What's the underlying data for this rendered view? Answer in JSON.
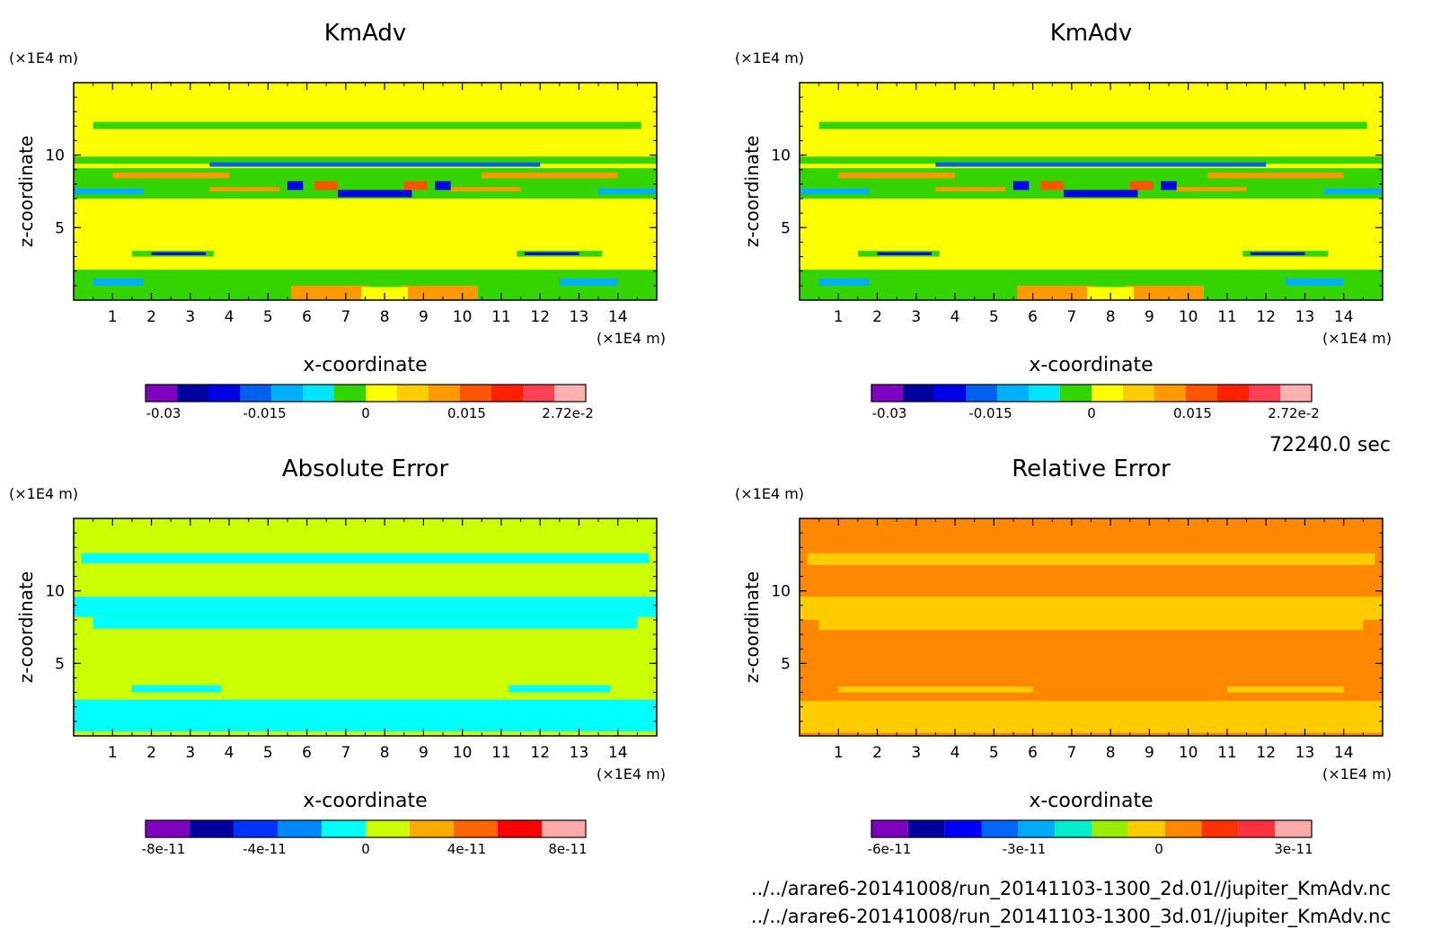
{
  "time_label": "72240.0 sec",
  "files": [
    "../../arare6-20141008/run_20141103-1300_2d.01//jupiter_KmAdv.nc",
    "../../arare6-20141008/run_20141103-1300_3d.01//jupiter_KmAdv.nc"
  ],
  "chart_data": [
    {
      "type": "heatmap",
      "title": "KmAdv",
      "xlabel": "x-coordinate",
      "ylabel": "z-coordinate",
      "x_unit": "(×1E4 m)",
      "y_unit": "(×1E4 m)",
      "xlim": [
        0,
        15
      ],
      "ylim": [
        0,
        15
      ],
      "x_ticks": [
        "1",
        "2",
        "3",
        "4",
        "5",
        "6",
        "7",
        "8",
        "9",
        "10",
        "11",
        "12",
        "13",
        "14"
      ],
      "y_ticks": [
        "5",
        "10"
      ],
      "background": "#ffff00",
      "colorbar": {
        "colors": [
          "#7f00bf",
          "#00009f",
          "#0000e6",
          "#0060f0",
          "#00b0ff",
          "#00e5ff",
          "#33d400",
          "#ffff00",
          "#ffcc00",
          "#ff9900",
          "#ff5500",
          "#ff2000",
          "#ff4055",
          "#ffb0b0"
        ],
        "labels": [
          "-0.03",
          "-0.015",
          "0",
          "0.015",
          "2.72e-2"
        ]
      },
      "regions": [
        {
          "color": "#33d400",
          "x": [
            0.5,
            14.6
          ],
          "z": [
            11.8,
            12.3
          ]
        },
        {
          "color": "#33d400",
          "x": [
            0,
            15
          ],
          "z": [
            9.4,
            9.9
          ]
        },
        {
          "color": "#33d400",
          "x": [
            0,
            15
          ],
          "z": [
            7.0,
            9.1
          ]
        },
        {
          "color": "#00b0ff",
          "x": [
            0,
            1.8
          ],
          "z": [
            7.3,
            7.7
          ]
        },
        {
          "color": "#00b0ff",
          "x": [
            13.5,
            15
          ],
          "z": [
            7.3,
            7.7
          ]
        },
        {
          "color": "#0060f0",
          "x": [
            3.5,
            12
          ],
          "z": [
            9.2,
            9.5
          ]
        },
        {
          "color": "#ff9900",
          "x": [
            1,
            4
          ],
          "z": [
            8.4,
            8.8
          ]
        },
        {
          "color": "#ff9900",
          "x": [
            10.5,
            14
          ],
          "z": [
            8.4,
            8.8
          ]
        },
        {
          "color": "#ff9900",
          "x": [
            3.5,
            5.3
          ],
          "z": [
            7.5,
            7.8
          ]
        },
        {
          "color": "#ff9900",
          "x": [
            9.7,
            11.5
          ],
          "z": [
            7.5,
            7.8
          ]
        },
        {
          "color": "#0000e6",
          "x": [
            5.5,
            5.9
          ],
          "z": [
            7.6,
            8.2
          ]
        },
        {
          "color": "#ff5500",
          "x": [
            6.2,
            6.8
          ],
          "z": [
            7.6,
            8.2
          ]
        },
        {
          "color": "#0000e6",
          "x": [
            6.8,
            8.7
          ],
          "z": [
            7.1,
            7.6
          ]
        },
        {
          "color": "#ff5500",
          "x": [
            8.5,
            9.1
          ],
          "z": [
            7.6,
            8.2
          ]
        },
        {
          "color": "#0000e6",
          "x": [
            9.3,
            9.7
          ],
          "z": [
            7.6,
            8.2
          ]
        },
        {
          "color": "#33d400",
          "x": [
            1.5,
            3.6
          ],
          "z": [
            3.0,
            3.4
          ]
        },
        {
          "color": "#0000e6",
          "x": [
            2.0,
            3.4
          ],
          "z": [
            3.1,
            3.3
          ]
        },
        {
          "color": "#33d400",
          "x": [
            11.4,
            13.6
          ],
          "z": [
            3.0,
            3.4
          ]
        },
        {
          "color": "#0000e6",
          "x": [
            11.6,
            13.0
          ],
          "z": [
            3.1,
            3.3
          ]
        },
        {
          "color": "#33d400",
          "x": [
            0,
            15
          ],
          "z": [
            0,
            2.1
          ]
        },
        {
          "color": "#00b0ff",
          "x": [
            0.5,
            1.8
          ],
          "z": [
            1.0,
            1.5
          ]
        },
        {
          "color": "#00b0ff",
          "x": [
            12.5,
            14
          ],
          "z": [
            1.0,
            1.5
          ]
        },
        {
          "color": "#ff9900",
          "x": [
            5.6,
            7.6
          ],
          "z": [
            0,
            1.0
          ]
        },
        {
          "color": "#ff9900",
          "x": [
            8.4,
            10.4
          ],
          "z": [
            0,
            1.0
          ]
        },
        {
          "color": "#ffff00",
          "x": [
            7.4,
            8.6
          ],
          "z": [
            0,
            0.9
          ]
        }
      ]
    },
    {
      "type": "heatmap",
      "title": "KmAdv",
      "xlabel": "x-coordinate",
      "ylabel": "z-coordinate",
      "x_unit": "(×1E4 m)",
      "y_unit": "(×1E4 m)",
      "xlim": [
        0,
        15
      ],
      "ylim": [
        0,
        15
      ],
      "x_ticks": [
        "1",
        "2",
        "3",
        "4",
        "5",
        "6",
        "7",
        "8",
        "9",
        "10",
        "11",
        "12",
        "13",
        "14"
      ],
      "y_ticks": [
        "5",
        "10"
      ],
      "background": "#ffff00",
      "colorbar": {
        "colors": [
          "#7f00bf",
          "#00009f",
          "#0000e6",
          "#0060f0",
          "#00b0ff",
          "#00e5ff",
          "#33d400",
          "#ffff00",
          "#ffcc00",
          "#ff9900",
          "#ff5500",
          "#ff2000",
          "#ff4055",
          "#ffb0b0"
        ],
        "labels": [
          "-0.03",
          "-0.015",
          "0",
          "0.015",
          "2.72e-2"
        ]
      },
      "regions": [
        {
          "color": "#33d400",
          "x": [
            0.5,
            14.6
          ],
          "z": [
            11.8,
            12.3
          ]
        },
        {
          "color": "#33d400",
          "x": [
            0,
            15
          ],
          "z": [
            9.4,
            9.9
          ]
        },
        {
          "color": "#33d400",
          "x": [
            0,
            15
          ],
          "z": [
            7.0,
            9.1
          ]
        },
        {
          "color": "#00b0ff",
          "x": [
            0,
            1.8
          ],
          "z": [
            7.3,
            7.7
          ]
        },
        {
          "color": "#00b0ff",
          "x": [
            13.5,
            15
          ],
          "z": [
            7.3,
            7.7
          ]
        },
        {
          "color": "#0060f0",
          "x": [
            3.5,
            12
          ],
          "z": [
            9.2,
            9.5
          ]
        },
        {
          "color": "#ff9900",
          "x": [
            1,
            4
          ],
          "z": [
            8.4,
            8.8
          ]
        },
        {
          "color": "#ff9900",
          "x": [
            10.5,
            14
          ],
          "z": [
            8.4,
            8.8
          ]
        },
        {
          "color": "#ff9900",
          "x": [
            3.5,
            5.3
          ],
          "z": [
            7.5,
            7.8
          ]
        },
        {
          "color": "#ff9900",
          "x": [
            9.7,
            11.5
          ],
          "z": [
            7.5,
            7.8
          ]
        },
        {
          "color": "#0000e6",
          "x": [
            5.5,
            5.9
          ],
          "z": [
            7.6,
            8.2
          ]
        },
        {
          "color": "#ff5500",
          "x": [
            6.2,
            6.8
          ],
          "z": [
            7.6,
            8.2
          ]
        },
        {
          "color": "#0000e6",
          "x": [
            6.8,
            8.7
          ],
          "z": [
            7.1,
            7.6
          ]
        },
        {
          "color": "#ff5500",
          "x": [
            8.5,
            9.1
          ],
          "z": [
            7.6,
            8.2
          ]
        },
        {
          "color": "#0000e6",
          "x": [
            9.3,
            9.7
          ],
          "z": [
            7.6,
            8.2
          ]
        },
        {
          "color": "#33d400",
          "x": [
            1.5,
            3.6
          ],
          "z": [
            3.0,
            3.4
          ]
        },
        {
          "color": "#0000e6",
          "x": [
            2.0,
            3.4
          ],
          "z": [
            3.1,
            3.3
          ]
        },
        {
          "color": "#33d400",
          "x": [
            11.4,
            13.6
          ],
          "z": [
            3.0,
            3.4
          ]
        },
        {
          "color": "#0000e6",
          "x": [
            11.6,
            13.0
          ],
          "z": [
            3.1,
            3.3
          ]
        },
        {
          "color": "#33d400",
          "x": [
            0,
            15
          ],
          "z": [
            0,
            2.1
          ]
        },
        {
          "color": "#00b0ff",
          "x": [
            0.5,
            1.8
          ],
          "z": [
            1.0,
            1.5
          ]
        },
        {
          "color": "#00b0ff",
          "x": [
            12.5,
            14
          ],
          "z": [
            1.0,
            1.5
          ]
        },
        {
          "color": "#ff9900",
          "x": [
            5.6,
            7.6
          ],
          "z": [
            0,
            1.0
          ]
        },
        {
          "color": "#ff9900",
          "x": [
            8.4,
            10.4
          ],
          "z": [
            0,
            1.0
          ]
        },
        {
          "color": "#ffff00",
          "x": [
            7.4,
            8.6
          ],
          "z": [
            0,
            0.9
          ]
        }
      ]
    },
    {
      "type": "heatmap",
      "title": "Absolute Error",
      "xlabel": "x-coordinate",
      "ylabel": "z-coordinate",
      "x_unit": "(×1E4 m)",
      "y_unit": "(×1E4 m)",
      "xlim": [
        0,
        15
      ],
      "ylim": [
        0,
        15
      ],
      "x_ticks": [
        "1",
        "2",
        "3",
        "4",
        "5",
        "6",
        "7",
        "8",
        "9",
        "10",
        "11",
        "12",
        "13",
        "14"
      ],
      "y_ticks": [
        "5",
        "10"
      ],
      "background": "#ccff00",
      "colorbar": {
        "colors": [
          "#7f00bf",
          "#00009f",
          "#0033ff",
          "#0088ff",
          "#00ffff",
          "#ccff00",
          "#ffaa00",
          "#ff6600",
          "#ff0000",
          "#ffaaaa"
        ],
        "labels": [
          "-8e-11",
          "-4e-11",
          "0",
          "4e-11",
          "8e-11"
        ]
      },
      "regions": [
        {
          "color": "#00ffff",
          "x": [
            0.2,
            14.8
          ],
          "z": [
            11.9,
            12.6
          ]
        },
        {
          "color": "#00ffff",
          "x": [
            0,
            15
          ],
          "z": [
            8.2,
            9.6
          ]
        },
        {
          "color": "#00ffff",
          "x": [
            0.5,
            14.5
          ],
          "z": [
            7.4,
            8.2
          ]
        },
        {
          "color": "#00ffff",
          "x": [
            1.5,
            3.8
          ],
          "z": [
            3.0,
            3.5
          ]
        },
        {
          "color": "#00ffff",
          "x": [
            11.2,
            13.8
          ],
          "z": [
            3.0,
            3.5
          ]
        },
        {
          "color": "#00ffff",
          "x": [
            0,
            15
          ],
          "z": [
            0.3,
            2.5
          ]
        }
      ]
    },
    {
      "type": "heatmap",
      "title": "Relative Error",
      "xlabel": "x-coordinate",
      "ylabel": "z-coordinate",
      "x_unit": "(×1E4 m)",
      "y_unit": "(×1E4 m)",
      "xlim": [
        0,
        15
      ],
      "ylim": [
        0,
        15
      ],
      "x_ticks": [
        "1",
        "2",
        "3",
        "4",
        "5",
        "6",
        "7",
        "8",
        "9",
        "10",
        "11",
        "12",
        "13",
        "14"
      ],
      "y_ticks": [
        "5",
        "10"
      ],
      "background": "#ff8800",
      "colorbar": {
        "colors": [
          "#7f00bf",
          "#00009f",
          "#0000ff",
          "#0066ff",
          "#00aaff",
          "#00eecc",
          "#99ee00",
          "#ffcc00",
          "#ff8800",
          "#ff3300",
          "#ff3040",
          "#ffaaaa"
        ],
        "labels": [
          "-6e-11",
          "-3e-11",
          "0",
          "3e-11"
        ]
      },
      "regions": [
        {
          "color": "#ffcc00",
          "x": [
            0.2,
            14.8
          ],
          "z": [
            11.8,
            12.6
          ]
        },
        {
          "color": "#ffcc00",
          "x": [
            0,
            15
          ],
          "z": [
            8.0,
            9.6
          ]
        },
        {
          "color": "#ffcc00",
          "x": [
            0.5,
            14.5
          ],
          "z": [
            7.3,
            8.0
          ]
        },
        {
          "color": "#ffcc00",
          "x": [
            1.0,
            6.0
          ],
          "z": [
            3.0,
            3.4
          ]
        },
        {
          "color": "#ffcc00",
          "x": [
            11.0,
            14.0
          ],
          "z": [
            3.0,
            3.4
          ]
        },
        {
          "color": "#ffcc00",
          "x": [
            0,
            15
          ],
          "z": [
            0.2,
            2.4
          ]
        }
      ]
    }
  ]
}
